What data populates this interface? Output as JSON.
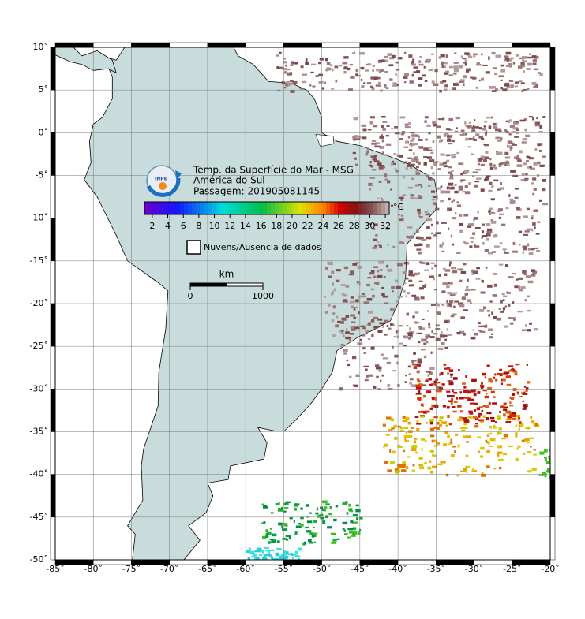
{
  "map": {
    "title": "Temp. da Superfície do Mar - MSG",
    "subtitle": "América do Sul",
    "pass": "Passagem: 201905081145",
    "xlim": [
      -85,
      -20
    ],
    "ylim": [
      -50,
      10
    ],
    "xticks": [
      {
        "value": -85,
        "label": "-85˚"
      },
      {
        "value": -80,
        "label": "-80˚"
      },
      {
        "value": -75,
        "label": "-75˚"
      },
      {
        "value": -70,
        "label": "-70˚"
      },
      {
        "value": -65,
        "label": "-65˚"
      },
      {
        "value": -60,
        "label": "-60˚"
      },
      {
        "value": -55,
        "label": "-55˚"
      },
      {
        "value": -50,
        "label": "-50˚"
      },
      {
        "value": -45,
        "label": "-45˚"
      },
      {
        "value": -40,
        "label": "-40˚"
      },
      {
        "value": -35,
        "label": "-35˚"
      },
      {
        "value": -30,
        "label": "-30˚"
      },
      {
        "value": -25,
        "label": "-25˚"
      },
      {
        "value": -20,
        "label": "-20˚"
      }
    ],
    "yticks": [
      {
        "value": 10,
        "label": "10˚"
      },
      {
        "value": 5,
        "label": "5˚"
      },
      {
        "value": 0,
        "label": "0˚"
      },
      {
        "value": -5,
        "label": "-5˚"
      },
      {
        "value": -10,
        "label": "-10˚"
      },
      {
        "value": -15,
        "label": "-15˚"
      },
      {
        "value": -20,
        "label": "-20˚"
      },
      {
        "value": -25,
        "label": "-25˚"
      },
      {
        "value": -30,
        "label": "-30˚"
      },
      {
        "value": -35,
        "label": "-35˚"
      },
      {
        "value": -40,
        "label": "-40˚"
      },
      {
        "value": -45,
        "label": "-45˚"
      },
      {
        "value": -50,
        "label": "-50˚"
      }
    ],
    "colorbar": {
      "unit": "°C",
      "lim": [
        1,
        32.5
      ],
      "ticks": [
        2,
        4,
        6,
        8,
        10,
        12,
        14,
        16,
        18,
        20,
        22,
        24,
        26,
        28,
        30,
        32
      ]
    },
    "legend": "Nuvens/Ausencia de dados",
    "scale": {
      "unit": "km",
      "ticks": [
        0,
        1000
      ]
    }
  }
}
